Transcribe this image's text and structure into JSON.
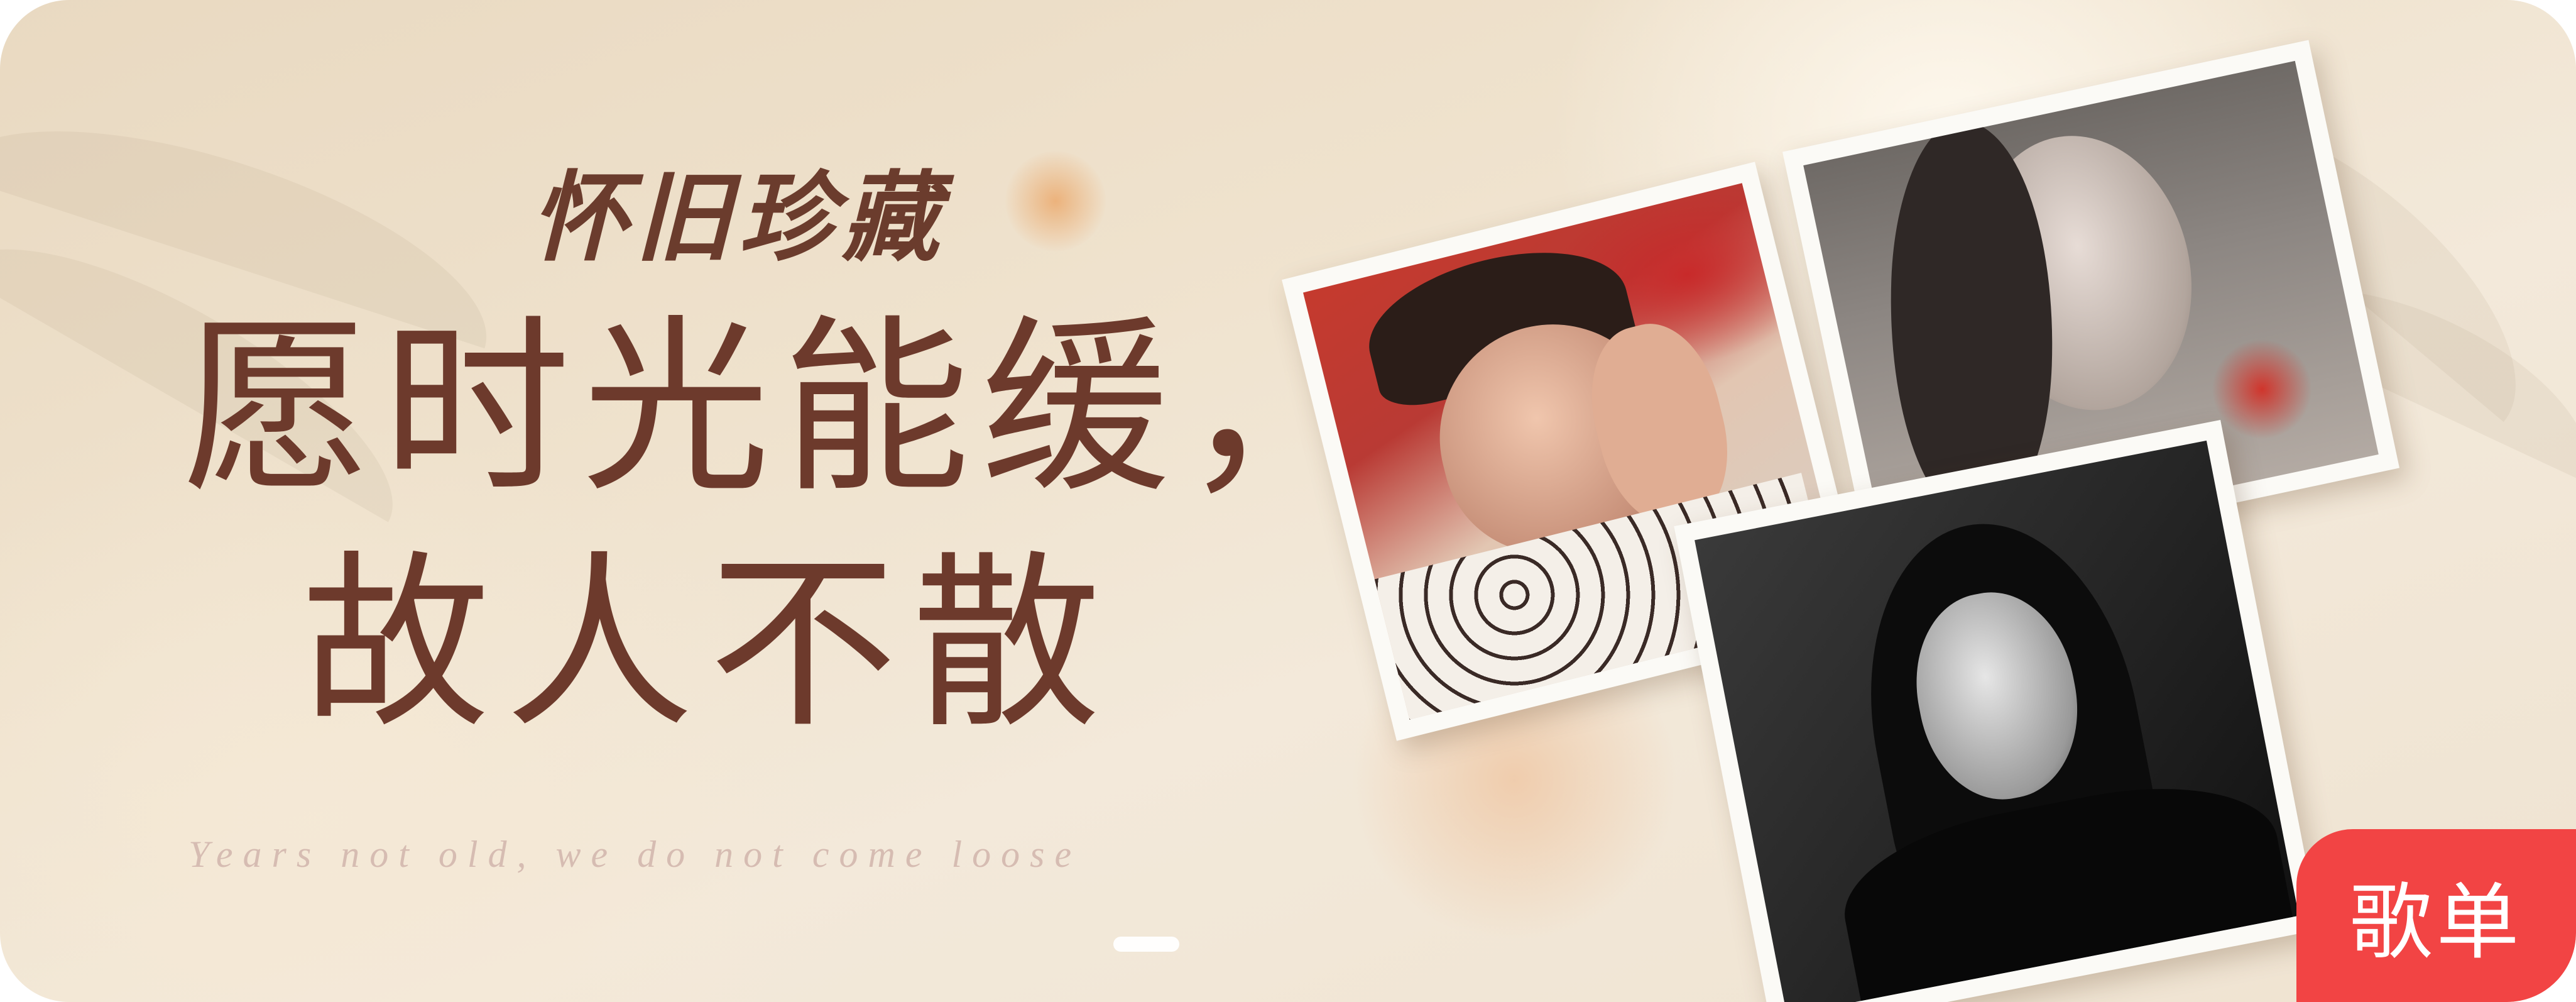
{
  "banner": {
    "kicker": "怀旧珍藏",
    "headline_line1": "愿时光能缓，",
    "headline_line2": "故人不散",
    "subtitle": "Years not old, we do not come loose",
    "badge_label": "歌单",
    "photos": [
      {
        "name": "album-photo-1"
      },
      {
        "name": "album-photo-2"
      },
      {
        "name": "album-photo-3"
      }
    ],
    "carousel": {
      "active_index": 0
    },
    "colors": {
      "headline": "#6d3a2c",
      "badge": "#f24444",
      "subtitle": "#d6bcb2",
      "background": "#efe2cd"
    }
  }
}
